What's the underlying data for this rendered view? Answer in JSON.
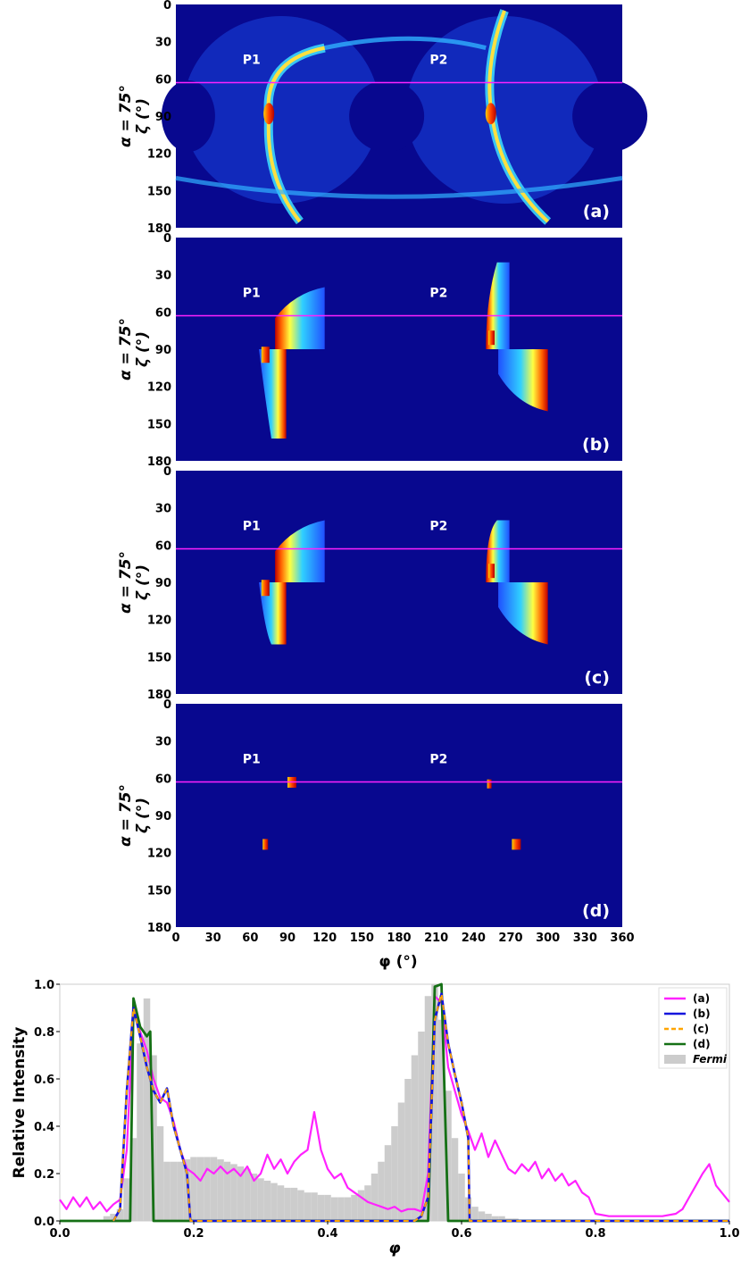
{
  "colors": {
    "map_bg": "#08088f",
    "cut_line": "#ff22ff",
    "a": "#ff22ff",
    "b": "#1515dd",
    "c": "#ffa500",
    "d": "#157015",
    "fermi": "#cccccc"
  },
  "maps": {
    "ylabel_alpha": "α = 75°",
    "ylabel_zeta": "ζ (°)",
    "xlabel": "φ (°)",
    "xticks": [
      "0",
      "30",
      "60",
      "90",
      "120",
      "150",
      "180",
      "210",
      "240",
      "270",
      "300",
      "330",
      "360"
    ],
    "yticks": [
      "0",
      "30",
      "60",
      "90",
      "120",
      "150",
      "180"
    ],
    "cut_zeta": 63,
    "panels": [
      {
        "tag": "(a)",
        "p1": "P1",
        "p2": "P2"
      },
      {
        "tag": "(b)",
        "p1": "P1",
        "p2": "P2"
      },
      {
        "tag": "(c)",
        "p1": "P1",
        "p2": "P2"
      },
      {
        "tag": "(d)",
        "p1": "P1",
        "p2": "P2"
      }
    ]
  },
  "chart_data": {
    "type": "line",
    "xlabel": "φ",
    "ylabel": "Relative Intensity",
    "xlim": [
      0.0,
      1.0
    ],
    "ylim": [
      0.0,
      1.0
    ],
    "xticks": [
      "0.0",
      "0.2",
      "0.4",
      "0.6",
      "0.8",
      "1.0"
    ],
    "yticks": [
      "0.0",
      "0.2",
      "0.4",
      "0.6",
      "0.8",
      "1.0"
    ],
    "legend_position": "top-right",
    "series": [
      {
        "name": "(a)",
        "key": "a",
        "x": [
          0.0,
          0.01,
          0.02,
          0.03,
          0.04,
          0.05,
          0.06,
          0.07,
          0.08,
          0.09,
          0.1,
          0.11,
          0.12,
          0.13,
          0.14,
          0.15,
          0.16,
          0.17,
          0.18,
          0.19,
          0.2,
          0.21,
          0.22,
          0.23,
          0.24,
          0.25,
          0.26,
          0.27,
          0.28,
          0.29,
          0.3,
          0.31,
          0.32,
          0.33,
          0.34,
          0.35,
          0.36,
          0.37,
          0.38,
          0.39,
          0.4,
          0.41,
          0.42,
          0.43,
          0.44,
          0.45,
          0.46,
          0.47,
          0.48,
          0.49,
          0.5,
          0.51,
          0.52,
          0.53,
          0.54,
          0.55,
          0.56,
          0.57,
          0.58,
          0.59,
          0.6,
          0.61,
          0.62,
          0.63,
          0.64,
          0.65,
          0.66,
          0.67,
          0.68,
          0.69,
          0.7,
          0.71,
          0.72,
          0.73,
          0.74,
          0.75,
          0.76,
          0.77,
          0.78,
          0.79,
          0.8,
          0.82,
          0.84,
          0.86,
          0.88,
          0.9,
          0.92,
          0.93,
          0.94,
          0.95,
          0.96,
          0.97,
          0.98,
          1.0
        ],
        "y": [
          0.09,
          0.05,
          0.1,
          0.06,
          0.1,
          0.05,
          0.08,
          0.04,
          0.07,
          0.09,
          0.3,
          0.88,
          0.8,
          0.72,
          0.6,
          0.52,
          0.5,
          0.42,
          0.3,
          0.22,
          0.2,
          0.17,
          0.22,
          0.2,
          0.23,
          0.2,
          0.22,
          0.19,
          0.23,
          0.17,
          0.2,
          0.28,
          0.22,
          0.26,
          0.2,
          0.25,
          0.28,
          0.3,
          0.46,
          0.3,
          0.22,
          0.18,
          0.2,
          0.14,
          0.12,
          0.1,
          0.08,
          0.07,
          0.06,
          0.05,
          0.06,
          0.04,
          0.05,
          0.05,
          0.04,
          0.2,
          0.95,
          0.92,
          0.65,
          0.55,
          0.45,
          0.38,
          0.3,
          0.37,
          0.27,
          0.34,
          0.28,
          0.22,
          0.2,
          0.24,
          0.21,
          0.25,
          0.18,
          0.22,
          0.17,
          0.2,
          0.15,
          0.17,
          0.12,
          0.1,
          0.03,
          0.02,
          0.02,
          0.02,
          0.02,
          0.02,
          0.03,
          0.05,
          0.1,
          0.15,
          0.2,
          0.24,
          0.15,
          0.08
        ]
      },
      {
        "name": "(b)",
        "key": "b",
        "x": [
          0.08,
          0.09,
          0.1,
          0.11,
          0.12,
          0.13,
          0.14,
          0.15,
          0.16,
          0.17,
          0.18,
          0.19,
          0.195,
          0.2,
          0.5,
          0.53,
          0.54,
          0.55,
          0.56,
          0.57,
          0.58,
          0.59,
          0.6,
          0.61,
          0.612,
          1.0
        ],
        "y": [
          0.0,
          0.05,
          0.55,
          0.9,
          0.78,
          0.65,
          0.55,
          0.5,
          0.56,
          0.4,
          0.3,
          0.2,
          0.0,
          0.0,
          0.0,
          0.0,
          0.02,
          0.1,
          0.85,
          0.96,
          0.75,
          0.62,
          0.5,
          0.35,
          0.0,
          0.0
        ]
      },
      {
        "name": "(c)",
        "key": "c",
        "x": [
          0.08,
          0.09,
          0.1,
          0.11,
          0.12,
          0.13,
          0.14,
          0.15,
          0.16,
          0.17,
          0.18,
          0.19,
          0.195,
          0.2,
          0.5,
          0.53,
          0.54,
          0.55,
          0.56,
          0.57,
          0.58,
          0.59,
          0.6,
          0.61,
          0.612,
          1.0
        ],
        "y": [
          0.0,
          0.05,
          0.55,
          0.9,
          0.78,
          0.65,
          0.55,
          0.5,
          0.56,
          0.4,
          0.3,
          0.2,
          0.0,
          0.0,
          0.0,
          0.0,
          0.02,
          0.1,
          0.85,
          0.96,
          0.75,
          0.62,
          0.5,
          0.35,
          0.0,
          0.0
        ]
      },
      {
        "name": "(d)",
        "key": "d",
        "x": [
          0.0,
          0.105,
          0.11,
          0.12,
          0.13,
          0.135,
          0.14,
          0.15,
          0.55,
          0.56,
          0.57,
          0.58,
          0.59,
          1.0
        ],
        "y": [
          0.0,
          0.0,
          0.94,
          0.82,
          0.78,
          0.8,
          0.0,
          0.0,
          0.0,
          0.99,
          1.0,
          0.0,
          0.0,
          0.0
        ]
      },
      {
        "name": "Fermi",
        "key": "fermi",
        "kind": "histogram",
        "x": [
          0.07,
          0.08,
          0.09,
          0.1,
          0.11,
          0.12,
          0.13,
          0.14,
          0.15,
          0.16,
          0.17,
          0.18,
          0.19,
          0.2,
          0.21,
          0.22,
          0.23,
          0.24,
          0.25,
          0.26,
          0.27,
          0.28,
          0.29,
          0.3,
          0.31,
          0.32,
          0.33,
          0.34,
          0.35,
          0.36,
          0.37,
          0.38,
          0.39,
          0.4,
          0.41,
          0.42,
          0.43,
          0.44,
          0.45,
          0.46,
          0.47,
          0.48,
          0.49,
          0.5,
          0.51,
          0.52,
          0.53,
          0.54,
          0.55,
          0.56,
          0.57,
          0.58,
          0.59,
          0.6,
          0.61,
          0.62,
          0.63,
          0.64,
          0.65,
          0.66,
          0.67,
          0.68
        ],
        "y": [
          0.02,
          0.03,
          0.05,
          0.18,
          0.35,
          0.75,
          0.94,
          0.7,
          0.4,
          0.25,
          0.25,
          0.25,
          0.26,
          0.27,
          0.27,
          0.27,
          0.27,
          0.26,
          0.25,
          0.24,
          0.23,
          0.22,
          0.2,
          0.18,
          0.17,
          0.16,
          0.15,
          0.14,
          0.14,
          0.13,
          0.12,
          0.12,
          0.11,
          0.11,
          0.1,
          0.1,
          0.1,
          0.11,
          0.13,
          0.15,
          0.2,
          0.25,
          0.32,
          0.4,
          0.5,
          0.6,
          0.7,
          0.8,
          0.95,
          1.0,
          0.85,
          0.55,
          0.35,
          0.2,
          0.1,
          0.06,
          0.04,
          0.03,
          0.02,
          0.02,
          0.01,
          0.01
        ]
      }
    ]
  }
}
